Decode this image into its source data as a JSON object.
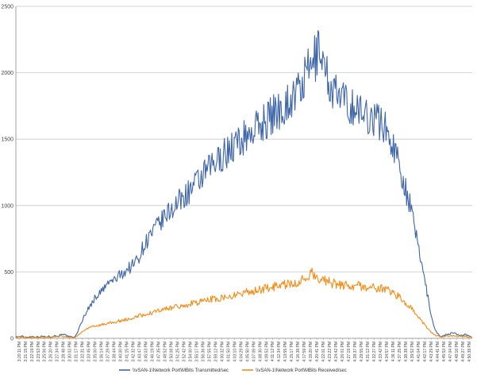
{
  "chart_data": {
    "type": "line",
    "title": "",
    "xlabel": "",
    "ylabel": "",
    "ylim": [
      0,
      2500
    ],
    "yticks": [
      0,
      500,
      1000,
      1500,
      2000,
      2500
    ],
    "grid": true,
    "legend_position": "bottom",
    "x_tick_labels": [
      "3:20:11 PM",
      "3:21:15 PM",
      "3:22:19 PM",
      "3:23:53 PM",
      "3:25:06 PM",
      "3:26:20 PM",
      "3:27:34 PM",
      "3:28:48 PM",
      "3:30:02 PM",
      "3:31:17 PM",
      "3:32:31 PM",
      "3:33:45 PM",
      "3:35:00 PM",
      "3:36:14 PM",
      "3:37:29 PM",
      "3:38:44 PM",
      "3:40:00 PM",
      "3:41:15 PM",
      "3:42:32 PM",
      "3:43:47 PM",
      "3:45:03 PM",
      "3:46:19 PM",
      "3:47:35 PM",
      "3:48:52 PM",
      "3:50:08 PM",
      "3:51:25 PM",
      "3:52:42 PM",
      "3:54:00 PM",
      "3:55:17 PM",
      "3:56:36 PM",
      "3:57:55 PM",
      "3:59:12 PM",
      "4:00:32 PM",
      "4:01:50 PM",
      "4:03:10 PM",
      "4:04:29 PM",
      "4:05:50 PM",
      "4:07:09 PM",
      "4:08:30 PM",
      "4:09:52 PM",
      "4:11:12 PM",
      "4:12:34 PM",
      "4:13:55 PM",
      "4:15:17 PM",
      "4:16:38 PM",
      "4:17:59 PM",
      "4:19:20 PM",
      "4:20:41 PM",
      "4:22:01 PM",
      "4:23:22 PM",
      "4:24:42 PM",
      "4:26:01 PM",
      "4:27:19 PM",
      "4:28:37 PM",
      "4:29:55 PM",
      "4:31:12 PM",
      "4:32:27 PM",
      "4:33:42 PM",
      "4:34:57 PM",
      "4:36:11 PM",
      "4:37:25 PM",
      "4:38:38 PM",
      "4:39:52 PM",
      "4:41:04 PM",
      "4:42:17 PM",
      "4:43:29 PM",
      "4:44:41 PM",
      "4:45:53 PM",
      "4:47:04 PM",
      "4:48:16 PM",
      "4:49:27 PM",
      "4:50:38 PM"
    ],
    "series": [
      {
        "name": "\\\\vSAN-1\\Network Port\\MBits Transmitted/sec",
        "color": "#3e66a8",
        "values": [
          10,
          12,
          14,
          9,
          11,
          13,
          12,
          10,
          15,
          11,
          14,
          12,
          20,
          15,
          35,
          25,
          12,
          8,
          10,
          60,
          120,
          180,
          220,
          260,
          300,
          330,
          350,
          380,
          410,
          430,
          440,
          460,
          480,
          500,
          520,
          540,
          560,
          600,
          640,
          700,
          740,
          780,
          800,
          840,
          870,
          900,
          930,
          960,
          990,
          1010,
          1040,
          1060,
          1090,
          1110,
          1140,
          1160,
          1190,
          1220,
          1250,
          1280,
          1300,
          1320,
          1350,
          1380,
          1400,
          1420,
          1440,
          1460,
          1480,
          1500,
          1520,
          1540,
          1560,
          1580,
          1600,
          1620,
          1640,
          1660,
          1680,
          1700,
          1720,
          1740,
          1760,
          1780,
          1800,
          1830,
          1860,
          1900,
          1950,
          2000,
          2050,
          2100,
          2150,
          2200,
          2050,
          1950,
          1900,
          1850,
          1820,
          1800,
          1780,
          1760,
          1750,
          1740,
          1720,
          1700,
          1690,
          1680,
          1670,
          1660,
          1650,
          1630,
          1600,
          1560,
          1500,
          1440,
          1380,
          1300,
          1200,
          1100,
          1000,
          880,
          760,
          650,
          520,
          380,
          240,
          120,
          50,
          20,
          15,
          25,
          30,
          45,
          35,
          25,
          20,
          30,
          15,
          10
        ]
      },
      {
        "name": "\\\\vSAN-1\\Network Port\\MBits Received/sec",
        "color": "#f28e1c",
        "values": [
          5,
          6,
          7,
          5,
          6,
          6,
          5,
          5,
          7,
          6,
          8,
          7,
          9,
          10,
          15,
          12,
          6,
          5,
          5,
          20,
          40,
          60,
          70,
          80,
          90,
          95,
          100,
          105,
          110,
          115,
          120,
          125,
          130,
          135,
          140,
          145,
          150,
          160,
          170,
          175,
          180,
          185,
          190,
          200,
          205,
          210,
          220,
          225,
          230,
          235,
          240,
          245,
          250,
          255,
          260,
          265,
          270,
          275,
          280,
          285,
          290,
          295,
          300,
          305,
          310,
          315,
          320,
          325,
          330,
          335,
          340,
          345,
          350,
          355,
          360,
          365,
          370,
          375,
          380,
          385,
          390,
          395,
          400,
          405,
          410,
          415,
          420,
          425,
          430,
          440,
          460,
          480,
          490,
          470,
          450,
          440,
          430,
          420,
          415,
          410,
          405,
          400,
          400,
          398,
          396,
          394,
          392,
          390,
          388,
          386,
          384,
          382,
          380,
          375,
          370,
          360,
          350,
          335,
          320,
          300,
          280,
          255,
          230,
          200,
          170,
          140,
          110,
          80,
          55,
          35,
          20,
          12,
          10,
          14,
          16,
          20,
          18,
          14,
          12,
          15,
          10,
          8
        ]
      }
    ]
  }
}
